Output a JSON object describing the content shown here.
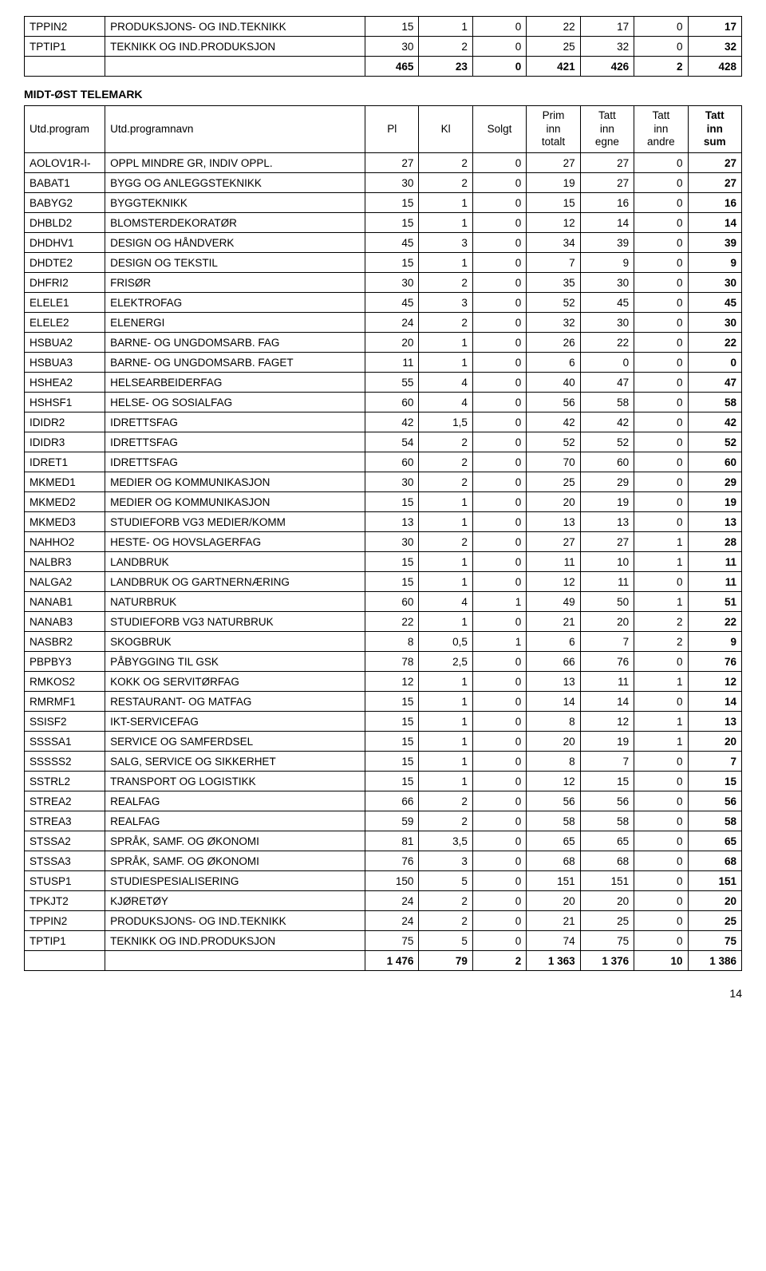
{
  "top_table": {
    "rows": [
      {
        "code": "TPPIN2",
        "desc": "PRODUKSJONS- OG IND.TEKNIKK",
        "c1": 15,
        "c2": 1,
        "c3": 0,
        "c4": 22,
        "c5": 17,
        "c6": 0,
        "c7": 17
      },
      {
        "code": "TPTIP1",
        "desc": "TEKNIKK OG IND.PRODUKSJON",
        "c1": 30,
        "c2": 2,
        "c3": 0,
        "c4": 25,
        "c5": 32,
        "c6": 0,
        "c7": 32
      }
    ],
    "total": {
      "c1": 465,
      "c2": 23,
      "c3": 0,
      "c4": 421,
      "c5": 426,
      "c6": 2,
      "c7": 428
    }
  },
  "section_title": "MIDT-ØST TELEMARK",
  "header": {
    "code": "Utd.program",
    "desc": "Utd.programnavn",
    "c1": "Pl",
    "c2": "Kl",
    "c3": "Solgt",
    "c4_top": "Prim",
    "c4_mid": "inn",
    "c4_bot": "totalt",
    "c5_top": "Tatt",
    "c5_mid": "inn",
    "c5_bot": "egne",
    "c6_top": "Tatt",
    "c6_mid": "inn",
    "c6_bot": "andre",
    "c7_top": "Tatt",
    "c7_mid": "inn",
    "c7_bot": "sum"
  },
  "main_table": {
    "rows": [
      {
        "code": "AOLOV1R-I-",
        "desc": "OPPL MINDRE GR, INDIV OPPL.",
        "c1": 27,
        "c2": 2,
        "c3": 0,
        "c4": 27,
        "c5": 27,
        "c6": 0,
        "c7": 27
      },
      {
        "code": "BABAT1",
        "desc": "BYGG OG ANLEGGSTEKNIKK",
        "c1": 30,
        "c2": 2,
        "c3": 0,
        "c4": 19,
        "c5": 27,
        "c6": 0,
        "c7": 27
      },
      {
        "code": "BABYG2",
        "desc": "BYGGTEKNIKK",
        "c1": 15,
        "c2": 1,
        "c3": 0,
        "c4": 15,
        "c5": 16,
        "c6": 0,
        "c7": 16
      },
      {
        "code": "DHBLD2",
        "desc": "BLOMSTERDEKORATØR",
        "c1": 15,
        "c2": 1,
        "c3": 0,
        "c4": 12,
        "c5": 14,
        "c6": 0,
        "c7": 14
      },
      {
        "code": "DHDHV1",
        "desc": "DESIGN OG HÅNDVERK",
        "c1": 45,
        "c2": 3,
        "c3": 0,
        "c4": 34,
        "c5": 39,
        "c6": 0,
        "c7": 39
      },
      {
        "code": "DHDTE2",
        "desc": "DESIGN OG TEKSTIL",
        "c1": 15,
        "c2": 1,
        "c3": 0,
        "c4": 7,
        "c5": 9,
        "c6": 0,
        "c7": 9
      },
      {
        "code": "DHFRI2",
        "desc": "FRISØR",
        "c1": 30,
        "c2": 2,
        "c3": 0,
        "c4": 35,
        "c5": 30,
        "c6": 0,
        "c7": 30
      },
      {
        "code": "ELELE1",
        "desc": "ELEKTROFAG",
        "c1": 45,
        "c2": 3,
        "c3": 0,
        "c4": 52,
        "c5": 45,
        "c6": 0,
        "c7": 45
      },
      {
        "code": "ELELE2",
        "desc": "ELENERGI",
        "c1": 24,
        "c2": 2,
        "c3": 0,
        "c4": 32,
        "c5": 30,
        "c6": 0,
        "c7": 30
      },
      {
        "code": "HSBUA2",
        "desc": "BARNE- OG UNGDOMSARB. FAG",
        "c1": 20,
        "c2": 1,
        "c3": 0,
        "c4": 26,
        "c5": 22,
        "c6": 0,
        "c7": 22
      },
      {
        "code": "HSBUA3",
        "desc": "BARNE- OG UNGDOMSARB. FAGET",
        "c1": 11,
        "c2": 1,
        "c3": 0,
        "c4": 6,
        "c5": 0,
        "c6": 0,
        "c7": 0
      },
      {
        "code": "HSHEA2",
        "desc": "HELSEARBEIDERFAG",
        "c1": 55,
        "c2": 4,
        "c3": 0,
        "c4": 40,
        "c5": 47,
        "c6": 0,
        "c7": 47
      },
      {
        "code": "HSHSF1",
        "desc": "HELSE- OG SOSIALFAG",
        "c1": 60,
        "c2": 4,
        "c3": 0,
        "c4": 56,
        "c5": 58,
        "c6": 0,
        "c7": 58
      },
      {
        "code": "IDIDR2",
        "desc": "IDRETTSFAG",
        "c1": 42,
        "c2": "1,5",
        "c3": 0,
        "c4": 42,
        "c5": 42,
        "c6": 0,
        "c7": 42
      },
      {
        "code": "IDIDR3",
        "desc": "IDRETTSFAG",
        "c1": 54,
        "c2": 2,
        "c3": 0,
        "c4": 52,
        "c5": 52,
        "c6": 0,
        "c7": 52
      },
      {
        "code": "IDRET1",
        "desc": "IDRETTSFAG",
        "c1": 60,
        "c2": 2,
        "c3": 0,
        "c4": 70,
        "c5": 60,
        "c6": 0,
        "c7": 60
      },
      {
        "code": "MKMED1",
        "desc": "MEDIER OG KOMMUNIKASJON",
        "c1": 30,
        "c2": 2,
        "c3": 0,
        "c4": 25,
        "c5": 29,
        "c6": 0,
        "c7": 29
      },
      {
        "code": "MKMED2",
        "desc": "MEDIER OG KOMMUNIKASJON",
        "c1": 15,
        "c2": 1,
        "c3": 0,
        "c4": 20,
        "c5": 19,
        "c6": 0,
        "c7": 19
      },
      {
        "code": "MKMED3",
        "desc": "STUDIEFORB VG3 MEDIER/KOMM",
        "c1": 13,
        "c2": 1,
        "c3": 0,
        "c4": 13,
        "c5": 13,
        "c6": 0,
        "c7": 13
      },
      {
        "code": "NAHHO2",
        "desc": "HESTE- OG HOVSLAGERFAG",
        "c1": 30,
        "c2": 2,
        "c3": 0,
        "c4": 27,
        "c5": 27,
        "c6": 1,
        "c7": 28
      },
      {
        "code": "NALBR3",
        "desc": "LANDBRUK",
        "c1": 15,
        "c2": 1,
        "c3": 0,
        "c4": 11,
        "c5": 10,
        "c6": 1,
        "c7": 11
      },
      {
        "code": "NALGA2",
        "desc": "LANDBRUK OG GARTNERNÆRING",
        "c1": 15,
        "c2": 1,
        "c3": 0,
        "c4": 12,
        "c5": 11,
        "c6": 0,
        "c7": 11
      },
      {
        "code": "NANAB1",
        "desc": "NATURBRUK",
        "c1": 60,
        "c2": 4,
        "c3": 1,
        "c4": 49,
        "c5": 50,
        "c6": 1,
        "c7": 51
      },
      {
        "code": "NANAB3",
        "desc": "STUDIEFORB VG3 NATURBRUK",
        "c1": 22,
        "c2": 1,
        "c3": 0,
        "c4": 21,
        "c5": 20,
        "c6": 2,
        "c7": 22
      },
      {
        "code": "NASBR2",
        "desc": "SKOGBRUK",
        "c1": 8,
        "c2": "0,5",
        "c3": 1,
        "c4": 6,
        "c5": 7,
        "c6": 2,
        "c7": 9
      },
      {
        "code": "PBPBY3",
        "desc": "PÅBYGGING TIL GSK",
        "c1": 78,
        "c2": "2,5",
        "c3": 0,
        "c4": 66,
        "c5": 76,
        "c6": 0,
        "c7": 76
      },
      {
        "code": "RMKOS2",
        "desc": "KOKK OG SERVITØRFAG",
        "c1": 12,
        "c2": 1,
        "c3": 0,
        "c4": 13,
        "c5": 11,
        "c6": 1,
        "c7": 12
      },
      {
        "code": "RMRMF1",
        "desc": "RESTAURANT- OG MATFAG",
        "c1": 15,
        "c2": 1,
        "c3": 0,
        "c4": 14,
        "c5": 14,
        "c6": 0,
        "c7": 14
      },
      {
        "code": "SSISF2",
        "desc": "IKT-SERVICEFAG",
        "c1": 15,
        "c2": 1,
        "c3": 0,
        "c4": 8,
        "c5": 12,
        "c6": 1,
        "c7": 13
      },
      {
        "code": "SSSSA1",
        "desc": "SERVICE OG SAMFERDSEL",
        "c1": 15,
        "c2": 1,
        "c3": 0,
        "c4": 20,
        "c5": 19,
        "c6": 1,
        "c7": 20
      },
      {
        "code": "SSSSS2",
        "desc": "SALG, SERVICE OG SIKKERHET",
        "c1": 15,
        "c2": 1,
        "c3": 0,
        "c4": 8,
        "c5": 7,
        "c6": 0,
        "c7": 7
      },
      {
        "code": "SSTRL2",
        "desc": "TRANSPORT OG LOGISTIKK",
        "c1": 15,
        "c2": 1,
        "c3": 0,
        "c4": 12,
        "c5": 15,
        "c6": 0,
        "c7": 15
      },
      {
        "code": "STREA2",
        "desc": "REALFAG",
        "c1": 66,
        "c2": 2,
        "c3": 0,
        "c4": 56,
        "c5": 56,
        "c6": 0,
        "c7": 56
      },
      {
        "code": "STREA3",
        "desc": "REALFAG",
        "c1": 59,
        "c2": 2,
        "c3": 0,
        "c4": 58,
        "c5": 58,
        "c6": 0,
        "c7": 58
      },
      {
        "code": "STSSA2",
        "desc": "SPRÅK, SAMF. OG ØKONOMI",
        "c1": 81,
        "c2": "3,5",
        "c3": 0,
        "c4": 65,
        "c5": 65,
        "c6": 0,
        "c7": 65
      },
      {
        "code": "STSSA3",
        "desc": "SPRÅK, SAMF. OG ØKONOMI",
        "c1": 76,
        "c2": 3,
        "c3": 0,
        "c4": 68,
        "c5": 68,
        "c6": 0,
        "c7": 68
      },
      {
        "code": "STUSP1",
        "desc": "STUDIESPESIALISERING",
        "c1": 150,
        "c2": 5,
        "c3": 0,
        "c4": 151,
        "c5": 151,
        "c6": 0,
        "c7": 151
      },
      {
        "code": "TPKJT2",
        "desc": "KJØRETØY",
        "c1": 24,
        "c2": 2,
        "c3": 0,
        "c4": 20,
        "c5": 20,
        "c6": 0,
        "c7": 20
      },
      {
        "code": "TPPIN2",
        "desc": "PRODUKSJONS- OG IND.TEKNIKK",
        "c1": 24,
        "c2": 2,
        "c3": 0,
        "c4": 21,
        "c5": 25,
        "c6": 0,
        "c7": 25
      },
      {
        "code": "TPTIP1",
        "desc": "TEKNIKK OG IND.PRODUKSJON",
        "c1": 75,
        "c2": 5,
        "c3": 0,
        "c4": 74,
        "c5": 75,
        "c6": 0,
        "c7": 75
      }
    ],
    "total": {
      "c1": "1 476",
      "c2": 79,
      "c3": 2,
      "c4": "1 363",
      "c5": "1 376",
      "c6": 10,
      "c7": "1 386"
    }
  },
  "page_number": "14"
}
